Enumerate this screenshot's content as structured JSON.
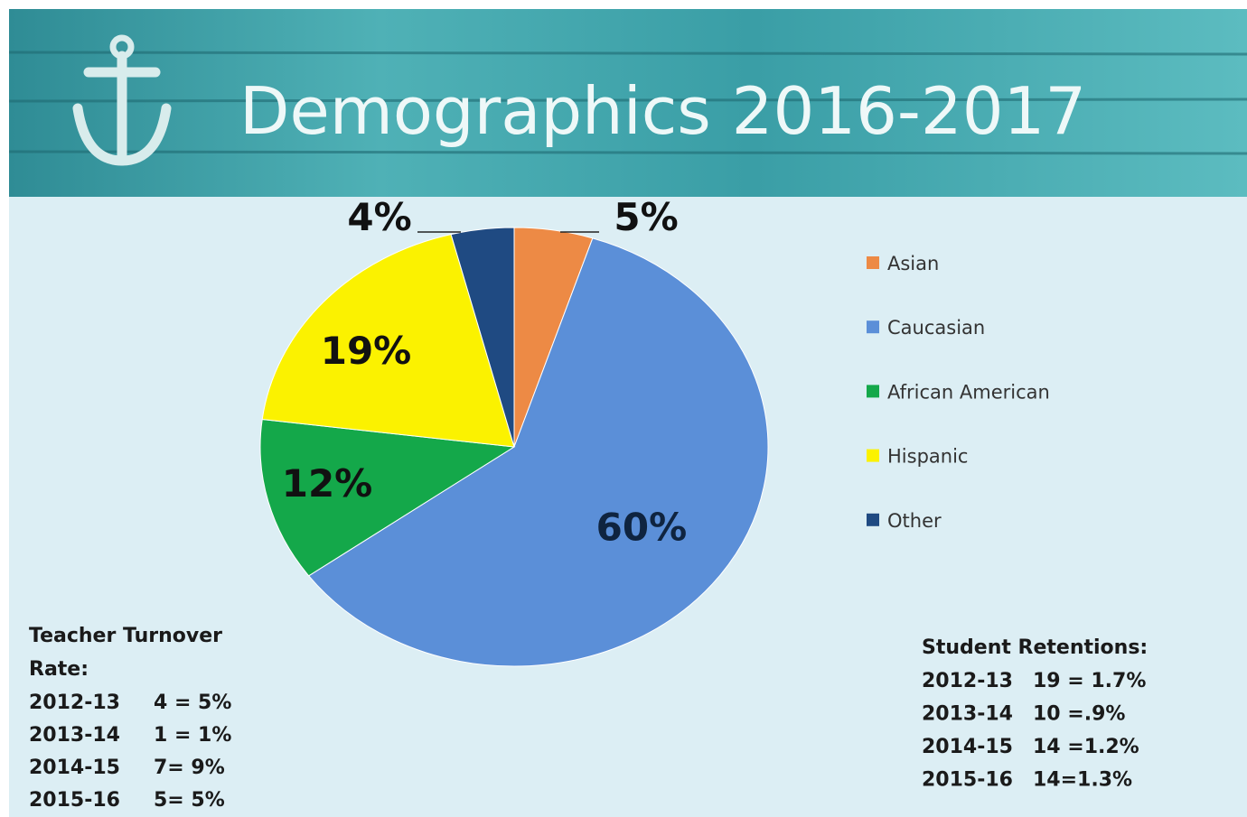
{
  "chart_data": {
    "type": "pie",
    "title": "Demographics  2016-2017",
    "categories": [
      "Asian",
      "Caucasian",
      "African American",
      "Hispanic",
      "Other"
    ],
    "values": [
      5,
      60,
      12,
      19,
      4
    ],
    "value_labels": [
      "5%",
      "60%",
      "12%",
      "19%",
      "4%"
    ],
    "colors": [
      "#ed8a45",
      "#5b8fd8",
      "#14a84a",
      "#fbf200",
      "#1f4a82"
    ],
    "legend": "right"
  },
  "teacher_turnover": {
    "title": "Teacher Turnover Rate:",
    "rows": [
      {
        "year": "2012-13",
        "value": "4 = 5%"
      },
      {
        "year": "2013-14",
        "value": "1 =  1%"
      },
      {
        "year": "2014-15",
        "value": "7= 9%"
      },
      {
        "year": "2015-16",
        "value": "5= 5%"
      }
    ]
  },
  "student_retentions": {
    "title": "Student Retentions:",
    "rows": [
      {
        "year": "2012-13",
        "value": "19 = 1.7%"
      },
      {
        "year": "2013-14",
        "value": "10 =.9%"
      },
      {
        "year": "2014-15",
        "value": "14 =1.2%"
      },
      {
        "year": "2015-16",
        "value": "14=1.3%"
      }
    ]
  }
}
